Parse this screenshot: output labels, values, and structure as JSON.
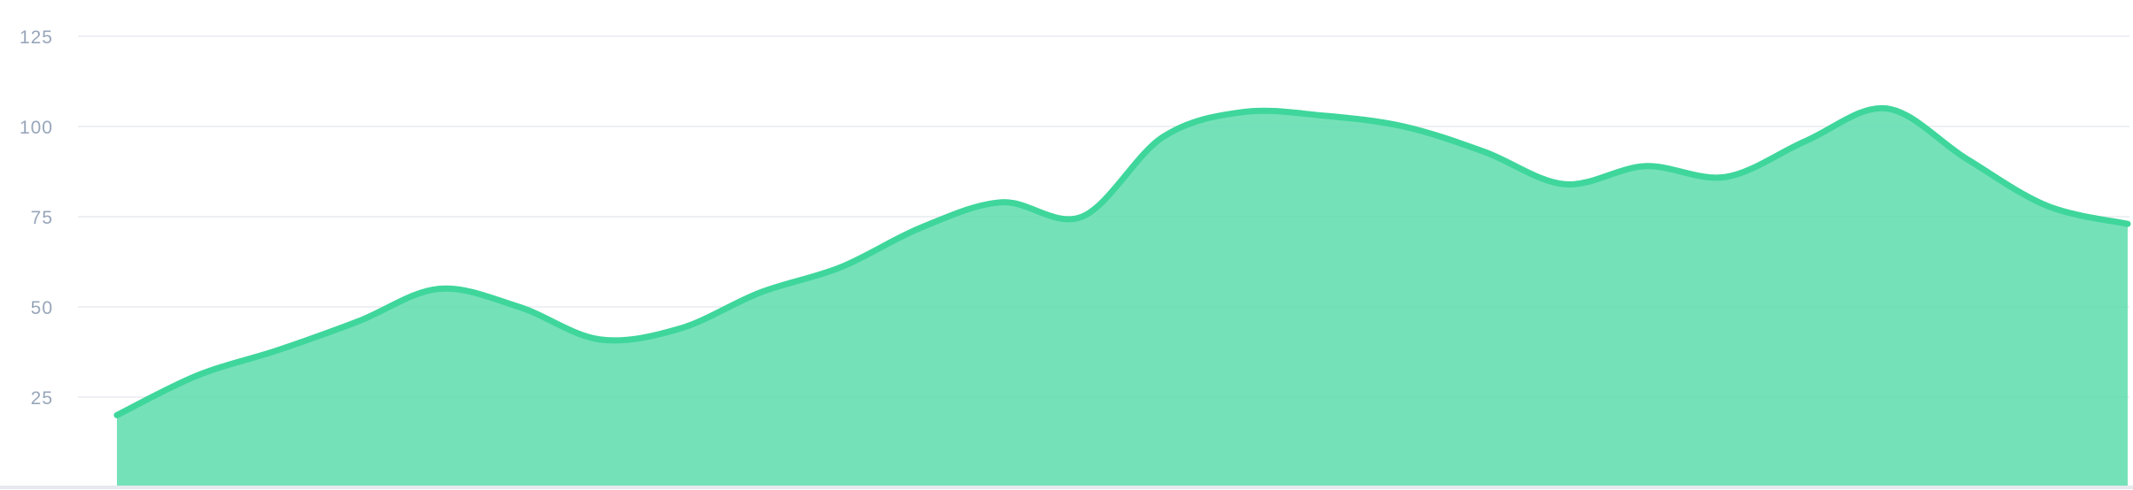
{
  "chart_data": {
    "type": "area",
    "title": "",
    "xlabel": "",
    "ylabel": "",
    "ylim": [
      0,
      125
    ],
    "yticks": [
      25,
      50,
      75,
      100,
      125
    ],
    "grid": true,
    "series": [
      {
        "color": "#3fd69b",
        "fill": "#5ddcad",
        "values": [
          20,
          31,
          38,
          46,
          55,
          50,
          41,
          44,
          54,
          61,
          72,
          79,
          75,
          97,
          104,
          103,
          100,
          93,
          84,
          89,
          86,
          96,
          105,
          91,
          78,
          73
        ]
      }
    ]
  }
}
